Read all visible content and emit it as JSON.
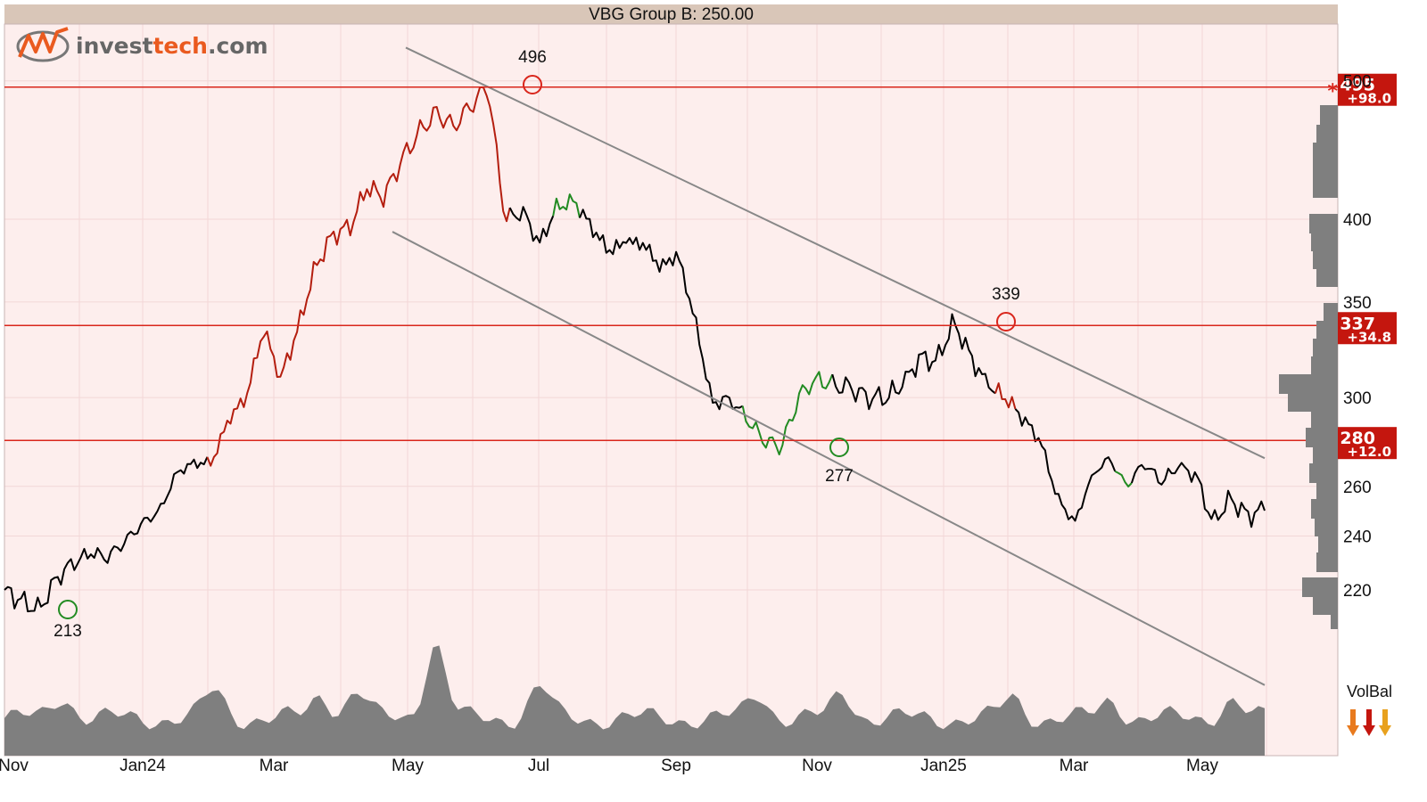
{
  "logo": {
    "part1": "invest",
    "part2": "tech",
    "part3": ".com"
  },
  "volume_indicator_label": "VolBal",
  "colors": {
    "background": "#fdeeed",
    "title_bar": "#d9c6b8",
    "price_line": "#000000",
    "rising_segment": "#b41e0f",
    "falling_segment": "#228b22",
    "resistance_line": "#d9261c",
    "trend_channel": "#888888",
    "volume_fill": "#7f7f7f",
    "badge": "#c4160e"
  },
  "chart_data": {
    "type": "line",
    "title": "VBG Group B: 250.00",
    "x_ticks": [
      "Nov",
      "Jan24",
      "Mar",
      "May",
      "Jul",
      "Sep",
      "Nov",
      "Jan25",
      "Mar",
      "May"
    ],
    "y_scale": "log",
    "y_ticks": [
      220,
      240,
      260,
      300,
      350,
      400,
      500
    ],
    "y_range": [
      205,
      520
    ],
    "series": [
      {
        "key_points": [
          [
            "Nov",
            220
          ],
          [
            "",
            216
          ],
          [
            "",
            213
          ],
          [
            "",
            224
          ],
          [
            "",
            230
          ],
          [
            "",
            233
          ],
          [
            "Jan24",
            232
          ],
          [
            "",
            238
          ],
          [
            "",
            245
          ],
          [
            "",
            250
          ],
          [
            "",
            266
          ],
          [
            "",
            270
          ],
          [
            "Mar",
            270
          ],
          [
            "",
            290
          ],
          [
            "",
            300
          ],
          [
            "",
            335
          ],
          [
            "",
            310
          ],
          [
            "",
            335
          ],
          [
            "",
            370
          ],
          [
            "",
            390
          ],
          [
            "May",
            395
          ],
          [
            "",
            420
          ],
          [
            "",
            415
          ],
          [
            "",
            440
          ],
          [
            "",
            460
          ],
          [
            "",
            475
          ],
          [
            "",
            465
          ],
          [
            "",
            480
          ],
          [
            "Jul",
            496
          ],
          [
            "",
            400
          ],
          [
            "",
            405
          ],
          [
            "",
            385
          ],
          [
            "",
            408
          ],
          [
            "",
            412
          ],
          [
            "",
            395
          ],
          [
            "",
            380
          ],
          [
            "Sep",
            385
          ],
          [
            "",
            385
          ],
          [
            "",
            370
          ],
          [
            "",
            378
          ],
          [
            "",
            340
          ],
          [
            "",
            297
          ],
          [
            "",
            300
          ],
          [
            "",
            290
          ],
          [
            "Nov",
            280
          ],
          [
            "",
            277
          ],
          [
            "",
            300
          ],
          [
            "",
            310
          ],
          [
            "",
            306
          ],
          [
            "",
            305
          ],
          [
            "",
            300
          ],
          [
            "Jan25",
            300
          ],
          [
            "",
            305
          ],
          [
            "",
            320
          ],
          [
            "",
            318
          ],
          [
            "",
            339
          ],
          [
            "",
            320
          ],
          [
            "",
            305
          ],
          [
            "",
            300
          ],
          [
            "",
            290
          ],
          [
            "",
            280
          ],
          [
            "",
            255
          ],
          [
            "Mar",
            245
          ],
          [
            "",
            265
          ],
          [
            "",
            272
          ],
          [
            "",
            260
          ],
          [
            "",
            270
          ],
          [
            "",
            262
          ],
          [
            "May",
            268
          ],
          [
            "",
            265
          ],
          [
            "",
            245
          ],
          [
            "",
            255
          ],
          [
            "",
            248
          ],
          [
            "",
            250
          ]
        ]
      }
    ],
    "peaks": [
      {
        "label": "213",
        "value": 213,
        "type": "bottom"
      },
      {
        "label": "496",
        "value": 496,
        "type": "top"
      },
      {
        "label": "277",
        "value": 277,
        "type": "bottom"
      },
      {
        "label": "339",
        "value": 339,
        "type": "top"
      }
    ],
    "resistance_levels": [
      {
        "value": 495,
        "label": "495",
        "change": "+98.0",
        "stars": "*"
      },
      {
        "value": 337,
        "label": "337",
        "change": "+34.8",
        "stars": "**"
      },
      {
        "value": 280,
        "label": "280",
        "change": "+12.0",
        "stars": "***"
      }
    ],
    "trend_channel": {
      "direction": "falling"
    },
    "volume_balance": {
      "signal": "negative"
    },
    "grid": true,
    "legend": "none"
  }
}
